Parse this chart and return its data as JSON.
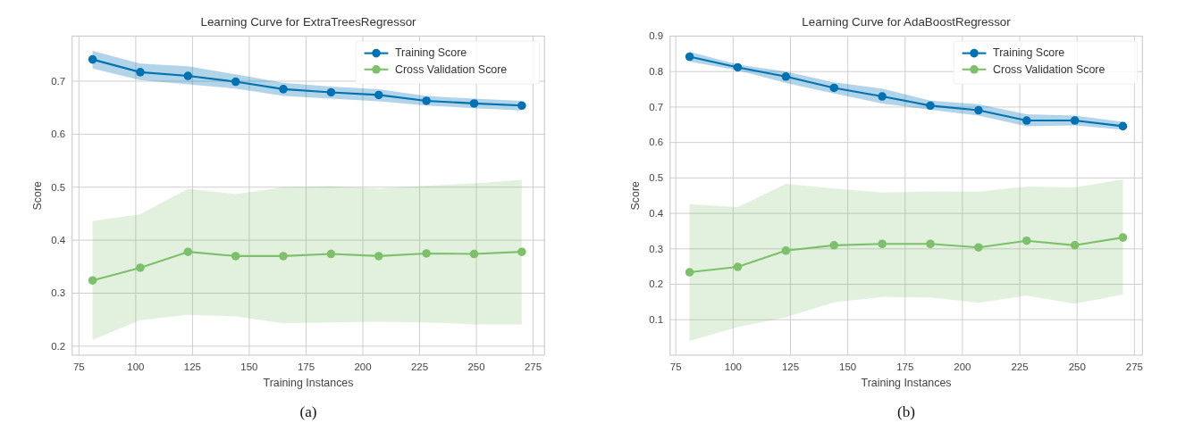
{
  "chart_data": [
    {
      "type": "line",
      "title": "Learning Curve for ExtraTreesRegressor",
      "xlabel": "Training Instances",
      "ylabel": "Score",
      "annotations": [
        "(a)"
      ],
      "x": [
        81,
        102,
        123,
        144,
        165,
        186,
        207,
        228,
        249,
        270
      ],
      "xlim": [
        72,
        280
      ],
      "ylim": [
        0.183,
        0.785
      ],
      "xticks": [
        75,
        100,
        125,
        150,
        175,
        200,
        225,
        250,
        275
      ],
      "yticks": [
        0.2,
        0.3,
        0.4,
        0.5,
        0.6,
        0.7
      ],
      "grid": true,
      "legend": "top right",
      "marker": "circle",
      "line_style": "solid",
      "series": [
        {
          "name": "Training Score",
          "color": "#0072b2",
          "values": [
            0.741,
            0.717,
            0.71,
            0.699,
            0.685,
            0.679,
            0.674,
            0.663,
            0.658,
            0.654
          ],
          "lower": [
            0.724,
            0.702,
            0.694,
            0.686,
            0.672,
            0.667,
            0.662,
            0.654,
            0.649,
            0.645
          ],
          "upper": [
            0.757,
            0.733,
            0.728,
            0.713,
            0.697,
            0.69,
            0.685,
            0.672,
            0.667,
            0.663
          ]
        },
        {
          "name": "Cross Validation Score",
          "color": "#7cc16a",
          "values": [
            0.324,
            0.348,
            0.378,
            0.37,
            0.37,
            0.374,
            0.37,
            0.375,
            0.374,
            0.378
          ],
          "lower": [
            0.212,
            0.249,
            0.259,
            0.256,
            0.243,
            0.245,
            0.246,
            0.245,
            0.241,
            0.241
          ],
          "upper": [
            0.436,
            0.449,
            0.497,
            0.487,
            0.5,
            0.502,
            0.497,
            0.503,
            0.507,
            0.514
          ]
        }
      ]
    },
    {
      "type": "line",
      "title": "Learning Curve for AdaBoostRegressor",
      "xlabel": "Training Instances",
      "ylabel": "Score",
      "annotations": [
        "(b)"
      ],
      "x": [
        81,
        102,
        123,
        144,
        165,
        186,
        207,
        228,
        249,
        270
      ],
      "xlim": [
        72.5,
        278.5
      ],
      "ylim": [
        0,
        0.9
      ],
      "xticks": [
        75,
        100,
        125,
        150,
        175,
        200,
        225,
        250,
        275
      ],
      "yticks": [
        0.1,
        0.2,
        0.3,
        0.4,
        0.5,
        0.6,
        0.7,
        0.8,
        0.9
      ],
      "grid": true,
      "legend": "top right",
      "marker": "circle",
      "line_style": "solid",
      "series": [
        {
          "name": "Training Score",
          "color": "#0072b2",
          "values": [
            0.842,
            0.812,
            0.786,
            0.754,
            0.73,
            0.704,
            0.691,
            0.662,
            0.662,
            0.646
          ],
          "lower": [
            0.828,
            0.804,
            0.768,
            0.738,
            0.71,
            0.692,
            0.676,
            0.646,
            0.648,
            0.636
          ],
          "upper": [
            0.856,
            0.82,
            0.8,
            0.77,
            0.752,
            0.718,
            0.708,
            0.68,
            0.676,
            0.658
          ]
        },
        {
          "name": "Cross Validation Score",
          "color": "#7cc16a",
          "values": [
            0.234,
            0.249,
            0.295,
            0.31,
            0.314,
            0.314,
            0.304,
            0.323,
            0.31,
            0.332
          ],
          "lower": [
            0.04,
            0.079,
            0.107,
            0.149,
            0.164,
            0.163,
            0.148,
            0.168,
            0.145,
            0.171
          ],
          "upper": [
            0.426,
            0.418,
            0.483,
            0.47,
            0.459,
            0.462,
            0.461,
            0.476,
            0.473,
            0.496
          ]
        }
      ]
    }
  ]
}
